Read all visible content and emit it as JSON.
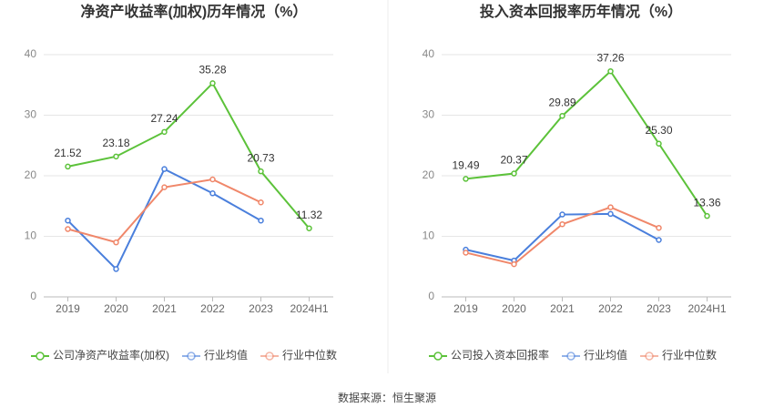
{
  "chart_data": [
    {
      "type": "line",
      "title": "净资产收益率(加权)历年情况（%）",
      "categories": [
        "2019",
        "2020",
        "2021",
        "2022",
        "2023",
        "2024H1"
      ],
      "series": [
        {
          "name": "公司净资产收益率(加权)",
          "color": "#5cc23a",
          "values": [
            21.52,
            23.18,
            27.24,
            35.28,
            20.73,
            11.32
          ],
          "value_labels": [
            "21.52",
            "23.18",
            "27.24",
            "35.28",
            "20.73",
            "11.32"
          ]
        },
        {
          "name": "行业均值",
          "color": "#4a7fdc",
          "values": [
            12.6,
            4.6,
            21.1,
            17.1,
            12.6,
            null
          ]
        },
        {
          "name": "行业中位数",
          "color": "#f0876a",
          "values": [
            11.2,
            9.0,
            18.1,
            19.4,
            15.6,
            null
          ]
        }
      ],
      "ylim": [
        0,
        40
      ],
      "yticks": [
        0,
        10,
        20,
        30,
        40
      ],
      "grid": true
    },
    {
      "type": "line",
      "title": "投入资本回报率历年情况（%）",
      "categories": [
        "2019",
        "2020",
        "2021",
        "2022",
        "2023",
        "2024H1"
      ],
      "series": [
        {
          "name": "公司投入资本回报率",
          "color": "#5cc23a",
          "values": [
            19.49,
            20.37,
            29.89,
            37.26,
            25.3,
            13.36
          ],
          "value_labels": [
            "19.49",
            "20.37",
            "29.89",
            "37.26",
            "25.30",
            "13.36"
          ]
        },
        {
          "name": "行业均值",
          "color": "#4a7fdc",
          "values": [
            7.8,
            6.0,
            13.6,
            13.7,
            9.4,
            null
          ]
        },
        {
          "name": "行业中位数",
          "color": "#f0876a",
          "values": [
            7.3,
            5.4,
            12.0,
            14.8,
            11.4,
            null
          ]
        }
      ],
      "ylim": [
        0,
        40
      ],
      "yticks": [
        0,
        10,
        20,
        30,
        40
      ],
      "grid": true
    }
  ],
  "source": "数据来源：恒生聚源"
}
